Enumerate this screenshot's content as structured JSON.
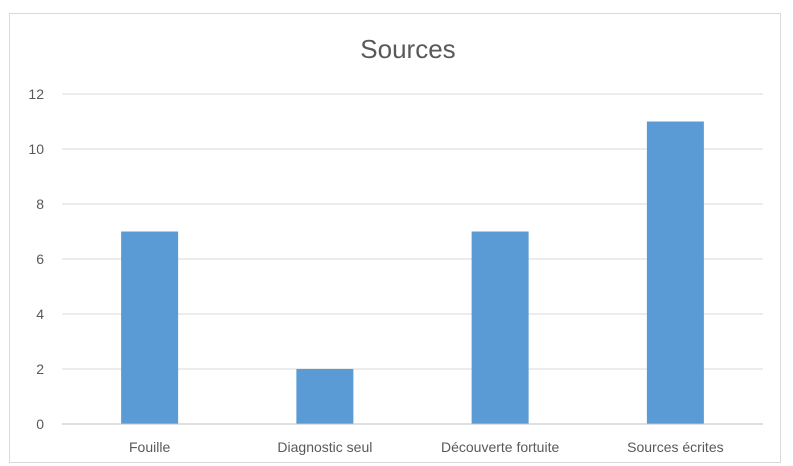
{
  "chart_data": {
    "type": "bar",
    "title": "Sources",
    "categories": [
      "Fouille",
      "Diagnostic seul",
      "Découverte fortuite",
      "Sources écrites"
    ],
    "series": [
      {
        "values": [
          7,
          2,
          7,
          11
        ]
      }
    ],
    "xlabel": "",
    "ylabel": "",
    "ylim": [
      0,
      12
    ],
    "yticks": [
      "0",
      "2",
      "4",
      "6",
      "8",
      "10",
      "12"
    ],
    "grid": true,
    "legend": "none",
    "bar_color": "#5b9bd5"
  }
}
